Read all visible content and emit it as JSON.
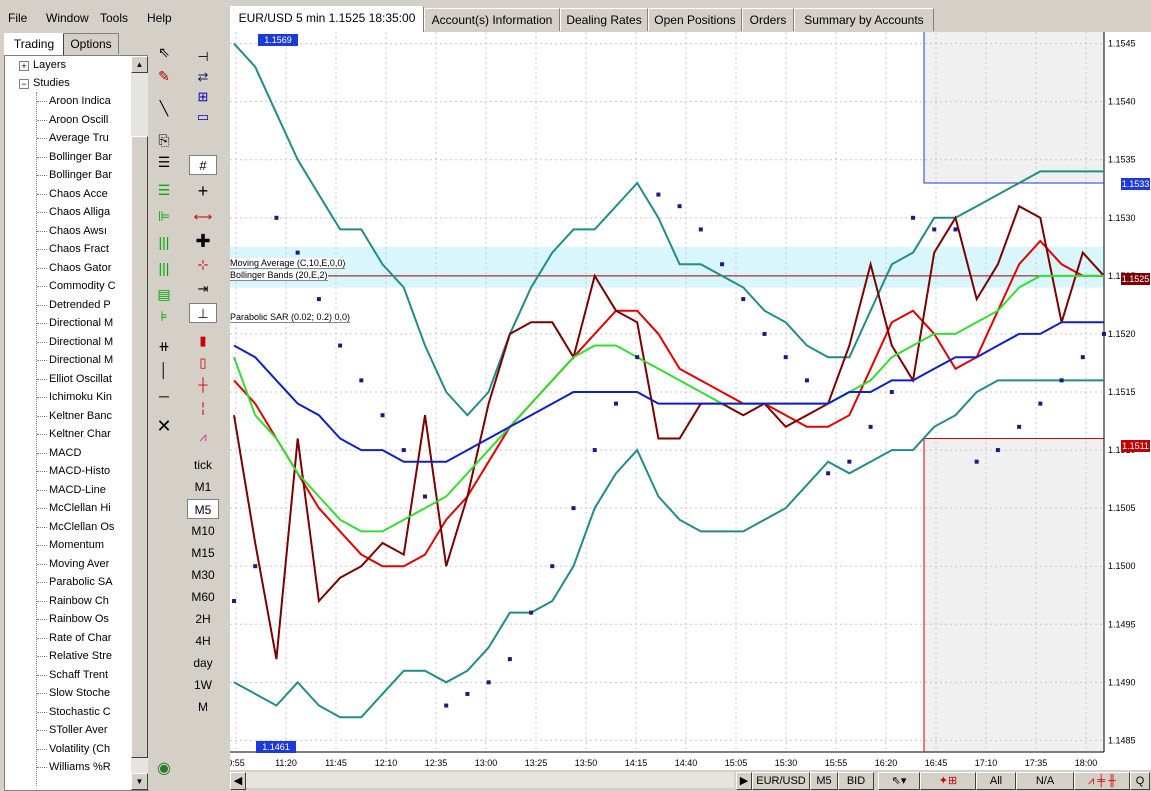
{
  "menu": [
    "File",
    "Window",
    "Tools",
    "Help"
  ],
  "left_panel": {
    "tabs": [
      "Trading",
      "Options"
    ],
    "tree_groups": [
      "Layers",
      "Studies"
    ],
    "studies": [
      "Aroon Indica",
      "Aroon Oscill",
      "Average Tru",
      "Bollinger Bar",
      "Bollinger Bar",
      "Chaos Acce",
      "Chaos Alliga",
      "Chaos Awsı",
      "Chaos Fract",
      "Chaos Gator",
      "Commodity C",
      "Detrended P",
      "Directional M",
      "Directional M",
      "Directional M",
      "Elliot Oscillat",
      "Ichimoku Kin",
      "Keltner Banc",
      "Keltner Char",
      "MACD",
      "MACD-Histo",
      "MACD-Line",
      "McClellan Hi",
      "McClellan Os",
      "Momentum",
      "Moving Aver",
      "Parabolic SA",
      "Rainbow Ch",
      "Rainbow Os",
      "Rate of Char",
      "Relative Stre",
      "Schaff Trent",
      "Slow Stoche",
      "Stochastic C",
      "SToller Aver",
      "Volatility (Ch",
      "Williams %R"
    ]
  },
  "tools_col1": [
    "arrow-cursor-icon",
    "text-marker-icon",
    "line-draw-icon",
    "copy-icon",
    "properties-icon",
    "fib-retracement-icon",
    "fib-fan-icon",
    "fib-arcs-icon",
    "fib-timezones-icon",
    "gann-fan-icon",
    "andrews-pitchfork-icon",
    "cycle-lines-icon",
    "vertical-line-icon",
    "horizontal-line-icon",
    "delete-icon"
  ],
  "tools_col2": [
    "pin-icon",
    "swap-icon",
    "grid-layout-icon",
    "single-layout-icon",
    "grid-icon",
    "crosshair-icon",
    "cross-arrow-icon",
    "cross-icon",
    "cross-red-icon",
    "snap-right-icon",
    "range-icon",
    "candle-icon",
    "hollow-candle-icon",
    "bar-icon",
    "tick-bar-icon",
    "line-chart-icon"
  ],
  "timeframes": [
    "tick",
    "M1",
    "M5",
    "M10",
    "M15",
    "M30",
    "M60",
    "2H",
    "4H",
    "day",
    "1W",
    "M"
  ],
  "selected_timeframe": "M5",
  "chart_tabs": [
    "EUR/USD 5 min 1.1525 18:35:00",
    "Account(s) Information",
    "Dealing Rates",
    "Open Positions",
    "Orders",
    "Summary by Accounts"
  ],
  "chart_labels": {
    "high_marker": "1.1569",
    "low_marker": "1.1461",
    "price_tag_top": "1.1533",
    "price_tag_current": "1.1525",
    "price_tag_bottom": "1.1511",
    "legend_ma": "Moving Average (C,10,E,0,0)",
    "legend_bb": "Bollinger Bands (20,E,2)",
    "legend_sar": "Parabolic SAR (0.02; 0.2) 0,0)",
    "status_right": "Q"
  },
  "status_bar": {
    "symbol": "EUR/USD",
    "timeframe": "M5",
    "side": "BID",
    "all_label": "All",
    "na_label": "N/A"
  },
  "colors": {
    "bollinger": "#228b8b",
    "price_line": "#7b0000",
    "ema_red": "#e00000",
    "ema_green": "#33dd33",
    "ema_blue": "#1020c0",
    "sar_dots": "#1a1a80",
    "highlight_band": "#d8f6fb"
  },
  "chart_data": {
    "type": "line",
    "title": "EUR/USD 5 min 1.1525 18:35:00",
    "x_tick_labels": [
      "0:55",
      "11:20",
      "11:45",
      "12:10",
      "12:35",
      "13:00",
      "13:25",
      "13:50",
      "14:15",
      "14:40",
      "15:05",
      "15:30",
      "15:55",
      "16:20",
      "16:45",
      "17:10",
      "17:35",
      "18:00"
    ],
    "y_tick_labels": [
      "1.1545",
      "1.1540",
      "1.1535",
      "1.1530",
      "1.1525",
      "1.1520",
      "1.1515",
      "1.1510",
      "1.1505",
      "1.1500",
      "1.1495",
      "1.1490",
      "1.1485"
    ],
    "ylim": [
      1.1484,
      1.1546
    ],
    "grid": true,
    "series": [
      {
        "name": "Moving Average (C,10,E,0,0)",
        "color": "#e00000",
        "values": [
          1.1516,
          1.1514,
          1.1511,
          1.1508,
          1.1505,
          1.1503,
          1.1501,
          1.15,
          1.15,
          1.1501,
          1.1504,
          1.1506,
          1.1509,
          1.1512,
          1.1514,
          1.1516,
          1.1518,
          1.152,
          1.1522,
          1.1522,
          1.152,
          1.1517,
          1.1516,
          1.1515,
          1.1514,
          1.1514,
          1.1513,
          1.1512,
          1.1512,
          1.1513,
          1.1517,
          1.1521,
          1.1522,
          1.152,
          1.1517,
          1.1518,
          1.1522,
          1.1526,
          1.1528,
          1.1526,
          1.1525,
          1.1525
        ]
      },
      {
        "name": "Bollinger Bands (20,E,2)",
        "color": "#228b8b",
        "values": [
          1.1545,
          1.1543,
          1.1539,
          1.1535,
          1.1532,
          1.1529,
          1.1529,
          1.1526,
          1.1524,
          1.1519,
          1.1515,
          1.1513,
          1.1515,
          1.152,
          1.1524,
          1.1527,
          1.1529,
          1.1529,
          1.1531,
          1.1533,
          1.153,
          1.1526,
          1.1526,
          1.1525,
          1.1524,
          1.1522,
          1.1521,
          1.1519,
          1.1518,
          1.1518,
          1.1522,
          1.1526,
          1.1527,
          1.153,
          1.153,
          1.1531,
          1.1532,
          1.1533,
          1.1534,
          1.1534,
          1.1534,
          1.1534
        ]
      },
      {
        "name": "Bollinger Lower",
        "color": "#228b8b",
        "values": [
          1.149,
          1.1489,
          1.1488,
          1.149,
          1.1488,
          1.1487,
          1.1487,
          1.1489,
          1.1491,
          1.1491,
          1.149,
          1.1491,
          1.1493,
          1.1496,
          1.1496,
          1.1497,
          1.15,
          1.1505,
          1.1508,
          1.151,
          1.1506,
          1.1504,
          1.1503,
          1.1503,
          1.1503,
          1.1504,
          1.1505,
          1.1507,
          1.1509,
          1.1508,
          1.1509,
          1.151,
          1.151,
          1.1512,
          1.1513,
          1.1515,
          1.1516,
          1.1516,
          1.1516,
          1.1516,
          1.1516,
          1.1516
        ]
      },
      {
        "name": "Price",
        "color": "#7b0000",
        "values": [
          1.1513,
          1.1502,
          1.1492,
          1.1511,
          1.1497,
          1.1499,
          1.15,
          1.1502,
          1.1501,
          1.1513,
          1.15,
          1.1506,
          1.1514,
          1.152,
          1.1521,
          1.1521,
          1.1518,
          1.1525,
          1.1522,
          1.1521,
          1.1511,
          1.1511,
          1.1514,
          1.1514,
          1.1513,
          1.1514,
          1.1512,
          1.1513,
          1.1514,
          1.1519,
          1.1526,
          1.1519,
          1.1516,
          1.1527,
          1.153,
          1.1523,
          1.1526,
          1.1531,
          1.153,
          1.1521,
          1.1527,
          1.1525
        ]
      },
      {
        "name": "EMA Green",
        "color": "#33dd33",
        "values": [
          1.1518,
          1.1513,
          1.1511,
          1.1508,
          1.1506,
          1.1504,
          1.1503,
          1.1503,
          1.1504,
          1.1505,
          1.1506,
          1.1508,
          1.151,
          1.1512,
          1.1514,
          1.1516,
          1.1518,
          1.1519,
          1.1519,
          1.1518,
          1.1517,
          1.1516,
          1.1515,
          1.1514,
          1.1514,
          1.1514,
          1.1514,
          1.1514,
          1.1514,
          1.1515,
          1.1516,
          1.1518,
          1.1519,
          1.152,
          1.152,
          1.1521,
          1.1522,
          1.1524,
          1.1525,
          1.1525,
          1.1525,
          1.1525
        ]
      },
      {
        "name": "EMA Blue",
        "color": "#1020c0",
        "values": [
          1.1519,
          1.1518,
          1.1516,
          1.1514,
          1.1513,
          1.1511,
          1.151,
          1.151,
          1.1509,
          1.1509,
          1.1509,
          1.151,
          1.1511,
          1.1512,
          1.1513,
          1.1514,
          1.1515,
          1.1515,
          1.1515,
          1.1515,
          1.1514,
          1.1514,
          1.1514,
          1.1514,
          1.1514,
          1.1514,
          1.1514,
          1.1514,
          1.1514,
          1.1515,
          1.1515,
          1.1516,
          1.1516,
          1.1517,
          1.1518,
          1.1518,
          1.1519,
          1.152,
          1.152,
          1.1521,
          1.1521,
          1.1521
        ]
      },
      {
        "name": "Parabolic SAR (0.02; 0.2)",
        "color": "#1a1a80",
        "values": [
          1.1497,
          1.15,
          1.153,
          1.1527,
          1.1523,
          1.1519,
          1.1516,
          1.1513,
          1.151,
          1.1506,
          1.1488,
          1.1489,
          1.149,
          1.1492,
          1.1496,
          1.15,
          1.1505,
          1.151,
          1.1514,
          1.1518,
          1.1532,
          1.1531,
          1.1529,
          1.1526,
          1.1523,
          1.152,
          1.1518,
          1.1516,
          1.1508,
          1.1509,
          1.1512,
          1.1515,
          1.153,
          1.1529,
          1.1529,
          1.1509,
          1.151,
          1.1512,
          1.1514,
          1.1516,
          1.1518,
          1.152
        ]
      }
    ]
  }
}
